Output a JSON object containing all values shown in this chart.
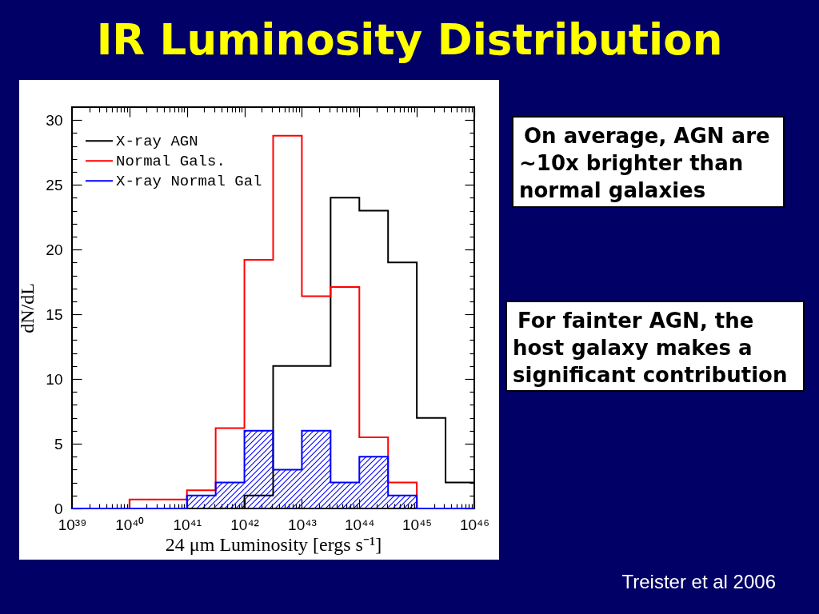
{
  "chart_data": {
    "type": "histogram",
    "title": "IR Luminosity Distribution",
    "xlabel": "24 μm Luminosity [ergs s⁻¹]",
    "ylabel": "dN/dL",
    "bins": [
      1e+39,
      3.162e+39,
      1e+40,
      3.162e+40,
      1e+41,
      3.162e+41,
      1e+42,
      3.162e+42,
      1e+43,
      3.162e+43,
      1e+44,
      3.162e+44,
      1e+45,
      3.162e+45,
      1e+46
    ],
    "series": [
      {
        "name": "X-ray AGN",
        "color": "#000000",
        "values": [
          0,
          0,
          0,
          0,
          0,
          0,
          1,
          11,
          11,
          24,
          23,
          19,
          7,
          2
        ]
      },
      {
        "name": "Normal Gals.",
        "color": "#ff0000",
        "values": [
          0,
          0,
          0.7,
          0.7,
          1.4,
          6.2,
          19.2,
          28.8,
          16.4,
          17.1,
          5.5,
          2,
          0,
          0
        ]
      },
      {
        "name": "X-ray Normal Gal",
        "color": "#0000ff",
        "values": [
          0,
          0,
          0,
          0,
          1,
          2,
          6,
          3,
          6,
          2,
          4,
          1,
          0,
          0
        ]
      }
    ],
    "xlim": [
      1e+39,
      1e+46
    ],
    "ylim": [
      0,
      31
    ],
    "xticks": [
      {
        "value": 1e+39,
        "label": "10³⁹"
      },
      {
        "value": 2e+39,
        "label": null
      },
      {
        "value": 3e+39,
        "label": null
      },
      {
        "value": 4e+39,
        "label": null
      },
      {
        "value": 5e+39,
        "label": null
      },
      {
        "value": 6e+39,
        "label": null
      },
      {
        "value": 7e+39,
        "label": null
      },
      {
        "value": 8e+39,
        "label": null
      },
      {
        "value": 9e+39,
        "label": null
      },
      {
        "value": 1e+40,
        "label": "10⁴⁰"
      },
      {
        "value": 2e+40,
        "label": null
      },
      {
        "value": 3e+40,
        "label": null
      },
      {
        "value": 4e+40,
        "label": null
      },
      {
        "value": 5e+40,
        "label": null
      },
      {
        "value": 6e+40,
        "label": null
      },
      {
        "value": 7e+40,
        "label": null
      },
      {
        "value": 8e+40,
        "label": null
      },
      {
        "value": 9e+40,
        "label": null
      },
      {
        "value": 1e+41,
        "label": "10⁴¹"
      },
      {
        "value": 2e+41,
        "label": null
      },
      {
        "value": 3e+41,
        "label": null
      },
      {
        "value": 4e+41,
        "label": null
      },
      {
        "value": 5e+41,
        "label": null
      },
      {
        "value": 6e+41,
        "label": null
      },
      {
        "value": 7e+41,
        "label": null
      },
      {
        "value": 8e+41,
        "label": null
      },
      {
        "value": 9e+41,
        "label": null
      },
      {
        "value": 1e+42,
        "label": "10⁴²"
      },
      {
        "value": 2e+42,
        "label": null
      },
      {
        "value": 3e+42,
        "label": null
      },
      {
        "value": 4e+42,
        "label": null
      },
      {
        "value": 5e+42,
        "label": null
      },
      {
        "value": 6e+42,
        "label": null
      },
      {
        "value": 7e+42,
        "label": null
      },
      {
        "value": 8e+42,
        "label": null
      },
      {
        "value": 9e+42,
        "label": null
      },
      {
        "value": 1e+43,
        "label": "10⁴³"
      },
      {
        "value": 2e+43,
        "label": null
      },
      {
        "value": 3e+43,
        "label": null
      },
      {
        "value": 4e+43,
        "label": null
      },
      {
        "value": 5e+43,
        "label": null
      },
      {
        "value": 6e+43,
        "label": null
      },
      {
        "value": 7e+43,
        "label": null
      },
      {
        "value": 8e+43,
        "label": null
      },
      {
        "value": 9e+43,
        "label": null
      },
      {
        "value": 1e+44,
        "label": "10⁴⁴"
      },
      {
        "value": 2e+44,
        "label": null
      },
      {
        "value": 3e+44,
        "label": null
      },
      {
        "value": 4e+44,
        "label": null
      },
      {
        "value": 5e+44,
        "label": null
      },
      {
        "value": 6e+44,
        "label": null
      },
      {
        "value": 7e+44,
        "label": null
      },
      {
        "value": 8e+44,
        "label": null
      },
      {
        "value": 9e+44,
        "label": null
      },
      {
        "value": 1e+45,
        "label": "10⁴⁵"
      },
      {
        "value": 2e+45,
        "label": null
      },
      {
        "value": 3e+45,
        "label": null
      },
      {
        "value": 4e+45,
        "label": null
      },
      {
        "value": 5e+45,
        "label": null
      },
      {
        "value": 6e+45,
        "label": null
      },
      {
        "value": 7e+45,
        "label": null
      },
      {
        "value": 8e+45,
        "label": null
      },
      {
        "value": 9e+45,
        "label": null
      },
      {
        "value": 1e+46,
        "label": "10⁴⁶"
      }
    ],
    "yticks": [
      0,
      {
        "value": 1,
        "label": null
      },
      {
        "value": 2,
        "label": null
      },
      {
        "value": 3,
        "label": null
      },
      {
        "value": 4,
        "label": null
      },
      5,
      {
        "value": 6,
        "label": null
      },
      {
        "value": 7,
        "label": null
      },
      {
        "value": 8,
        "label": null
      },
      {
        "value": 9,
        "label": null
      },
      10,
      {
        "value": 11,
        "label": null
      },
      {
        "value": 12,
        "label": null
      },
      {
        "value": 13,
        "label": null
      },
      {
        "value": 14,
        "label": null
      },
      15,
      {
        "value": 16,
        "label": null
      },
      {
        "value": 17,
        "label": null
      },
      {
        "value": 18,
        "label": null
      },
      {
        "value": 19,
        "label": null
      },
      20,
      {
        "value": 21,
        "label": null
      },
      {
        "value": 22,
        "label": null
      },
      {
        "value": 23,
        "label": null
      },
      {
        "value": 24,
        "label": null
      },
      25,
      {
        "value": 26,
        "label": null
      },
      {
        "value": 27,
        "label": null
      },
      {
        "value": 28,
        "label": null
      },
      {
        "value": 29,
        "label": null
      },
      30
    ],
    "log": "x",
    "legend": "top left",
    "annotations": [
      "On average, AGN are ~10x brighter than normal galaxies",
      "For fainter AGN, the host galaxy makes a significant contribution",
      "Treister et al 2006"
    ]
  }
}
